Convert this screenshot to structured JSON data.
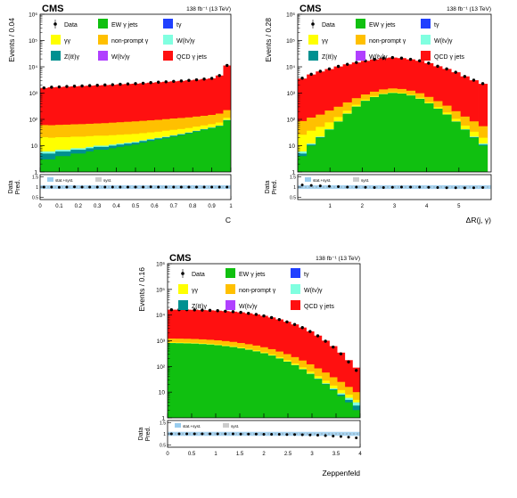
{
  "colors": {
    "ew": "#10c010",
    "nonprompt": "#ffc000",
    "gamma": "#ffff00",
    "tgamma": "#2040ff",
    "wgamma": "#80ffe0",
    "zgamma": "#009090",
    "wwgamma": "#b040ff",
    "qcd": "#ff1010",
    "stat_band": "#99ccee",
    "syst_band": "#cccccc",
    "data": "#000000"
  },
  "legend_labels": {
    "data": "Data",
    "ew": "EW γ jets",
    "tgamma": "tγ",
    "gamma": "γγ",
    "nonprompt": "non-prompt γ",
    "wgamma": "W(ℓν)γ",
    "zgamma": "Z(ℓℓ)γ",
    "wwgamma": "W(ℓν)γ",
    "qcd": "QCD γ jets",
    "stat": "stat.+syst.",
    "syst": "syst."
  },
  "chart_data": [
    {
      "type": "bar",
      "stacked": true,
      "log_y": true,
      "cms_label": "CMS",
      "lumi_label": "138 fb⁻¹ (13 TeV)",
      "ylabel": "Events / 0.04",
      "xlabel": "C",
      "ratio_ylabel": [
        "Data",
        "Pred."
      ],
      "xlim": [
        0,
        1
      ],
      "ylim": [
        1,
        1000000
      ],
      "x_ticks": [
        "0",
        "0.1",
        "0.2",
        "0.3",
        "0.4",
        "0.5",
        "0.6",
        "0.7",
        "0.8",
        "0.9",
        "1"
      ],
      "y_ticks": [
        "1",
        "10",
        "10²",
        "10³",
        "10⁴",
        "10⁵",
        "10⁶"
      ],
      "ratio_ticks": [
        "1.5",
        "1",
        "0.5"
      ],
      "ratio_lim": [
        0.4,
        1.6
      ],
      "bin_edges": [
        0,
        0.04,
        0.08,
        0.12,
        0.16,
        0.2,
        0.24,
        0.28,
        0.32,
        0.36,
        0.4,
        0.44,
        0.48,
        0.52,
        0.56,
        0.6,
        0.64,
        0.68,
        0.72,
        0.76,
        0.8,
        0.84,
        0.88,
        0.92,
        0.96,
        1.0
      ],
      "series": [
        {
          "key": "ew",
          "values": [
            3,
            3,
            4,
            4,
            5,
            5,
            6,
            7,
            7,
            8,
            9,
            10,
            11,
            13,
            15,
            17,
            19,
            22,
            25,
            29,
            34,
            40,
            46,
            55,
            90
          ]
        },
        {
          "key": "zgamma",
          "values": [
            2,
            2,
            2,
            2,
            2,
            2,
            2,
            2,
            2,
            2,
            2,
            2,
            2,
            2,
            2,
            2,
            2,
            2,
            2,
            2,
            2,
            2,
            2,
            2,
            3
          ]
        },
        {
          "key": "wgamma",
          "values": [
            1,
            1,
            1,
            1,
            1,
            1,
            1,
            1,
            1,
            1,
            1,
            1,
            1,
            1,
            1,
            1,
            1,
            1,
            1,
            1,
            1,
            1,
            1,
            1,
            2
          ]
        },
        {
          "key": "gamma",
          "values": [
            15,
            14,
            14,
            14,
            14,
            14,
            14,
            14,
            14,
            14,
            14,
            14,
            14,
            14,
            14,
            14,
            15,
            15,
            15,
            15,
            16,
            16,
            17,
            18,
            20
          ]
        },
        {
          "key": "nonprompt",
          "values": [
            40,
            40,
            41,
            42,
            43,
            44,
            45,
            46,
            48,
            50,
            52,
            54,
            56,
            58,
            60,
            62,
            65,
            68,
            70,
            72,
            75,
            78,
            82,
            90,
            110
          ]
        },
        {
          "key": "qcd",
          "values": [
            1500,
            1600,
            1650,
            1700,
            1750,
            1800,
            1850,
            1900,
            1950,
            2000,
            2100,
            2150,
            2200,
            2300,
            2400,
            2500,
            2600,
            2700,
            2800,
            2950,
            3100,
            3300,
            3500,
            4500,
            11000
          ]
        }
      ],
      "data": [
        1580,
        1680,
        1720,
        1790,
        1830,
        1870,
        1930,
        1980,
        2040,
        2090,
        2170,
        2230,
        2290,
        2380,
        2500,
        2600,
        2700,
        2810,
        2910,
        3050,
        3220,
        3420,
        3640,
        4650,
        11300
      ],
      "ratio": [
        1.0,
        1.0,
        0.99,
        1.0,
        1.01,
        1.0,
        1.0,
        1.0,
        1.0,
        1.0,
        1.0,
        1.0,
        1.0,
        1.0,
        1.01,
        1.0,
        1.0,
        1.0,
        1.0,
        1.0,
        1.0,
        1.0,
        1.0,
        1.0,
        1.0
      ]
    },
    {
      "type": "bar",
      "stacked": true,
      "log_y": true,
      "cms_label": "CMS",
      "lumi_label": "138 fb⁻¹ (13 TeV)",
      "ylabel": "Events / 0.28",
      "xlabel": "ΔR(j, γ)",
      "ratio_ylabel": [
        "Data",
        "Pred."
      ],
      "xlim": [
        0,
        6
      ],
      "ylim": [
        1,
        1000000
      ],
      "x_ticks": [
        "1",
        "2",
        "3",
        "4",
        "5"
      ],
      "x_tick_values": [
        1,
        2,
        3,
        4,
        5
      ],
      "y_ticks": [
        "1",
        "10",
        "10²",
        "10³",
        "10⁴",
        "10⁵",
        "10⁶"
      ],
      "ratio_ticks": [
        "1.5",
        "1",
        "0.5"
      ],
      "ratio_lim": [
        0.4,
        1.6
      ],
      "bin_edges": [
        0,
        0.28,
        0.56,
        0.84,
        1.12,
        1.4,
        1.68,
        1.96,
        2.24,
        2.52,
        2.8,
        3.08,
        3.36,
        3.64,
        3.92,
        4.2,
        4.48,
        4.76,
        5.04,
        5.32,
        5.6,
        5.88
      ],
      "series": [
        {
          "key": "ew",
          "values": [
            4,
            10,
            20,
            40,
            80,
            160,
            300,
            500,
            700,
            900,
            1000,
            950,
            800,
            600,
            400,
            250,
            150,
            80,
            40,
            20,
            10
          ]
        },
        {
          "key": "zgamma",
          "values": [
            1,
            1,
            1,
            1,
            2,
            3,
            4,
            5,
            6,
            7,
            8,
            7,
            6,
            5,
            4,
            3,
            2,
            2,
            1,
            1,
            1
          ]
        },
        {
          "key": "wgamma",
          "values": [
            1,
            1,
            1,
            1,
            1,
            2,
            2,
            3,
            3,
            4,
            4,
            4,
            3,
            3,
            2,
            2,
            1,
            1,
            1,
            1,
            1
          ]
        },
        {
          "key": "gamma",
          "values": [
            20,
            25,
            30,
            35,
            40,
            48,
            55,
            60,
            65,
            70,
            72,
            70,
            65,
            60,
            50,
            40,
            30,
            22,
            16,
            12,
            8
          ]
        },
        {
          "key": "nonprompt",
          "values": [
            60,
            80,
            100,
            140,
            180,
            230,
            280,
            320,
            360,
            400,
            420,
            400,
            360,
            320,
            260,
            200,
            150,
            100,
            70,
            50,
            35
          ]
        },
        {
          "key": "qcd",
          "values": [
            3500,
            5000,
            6500,
            8000,
            10000,
            12000,
            14000,
            16000,
            18000,
            20000,
            21000,
            20000,
            18000,
            16000,
            13000,
            10000,
            8000,
            6000,
            4200,
            3000,
            2200
          ]
        }
      ],
      "data": [
        3700,
        5200,
        6800,
        8300,
        10400,
        12500,
        14700,
        16900,
        19200,
        21400,
        22500,
        21500,
        19300,
        17000,
        13800,
        10500,
        8300,
        6200,
        4300,
        3100,
        2300
      ],
      "ratio": [
        1.1,
        1.08,
        1.06,
        1.04,
        1.02,
        1.0,
        1.0,
        0.99,
        0.98,
        0.98,
        0.99,
        1.0,
        1.0,
        1.0,
        0.99,
        0.98,
        0.97,
        0.97,
        0.96,
        0.97,
        0.98
      ]
    },
    {
      "type": "bar",
      "stacked": true,
      "log_y": true,
      "cms_label": "CMS",
      "lumi_label": "138 fb⁻¹ (13 TeV)",
      "ylabel": "Events / 0.16",
      "xlabel": "Zeppenfeld",
      "ratio_ylabel": [
        "Data",
        "Pred."
      ],
      "xlim": [
        0,
        4
      ],
      "ylim": [
        1,
        1000000
      ],
      "x_ticks": [
        "0",
        "0.5",
        "1",
        "1.5",
        "2",
        "2.5",
        "3",
        "3.5",
        "4"
      ],
      "y_ticks": [
        "1",
        "10",
        "10²",
        "10³",
        "10⁴",
        "10⁵",
        "10⁶"
      ],
      "ratio_ticks": [
        "1.5",
        "1",
        "0.5"
      ],
      "ratio_lim": [
        0.4,
        1.6
      ],
      "bin_edges": [
        0,
        0.16,
        0.32,
        0.48,
        0.64,
        0.8,
        0.96,
        1.12,
        1.28,
        1.44,
        1.6,
        1.76,
        1.92,
        2.08,
        2.24,
        2.4,
        2.56,
        2.72,
        2.88,
        3.04,
        3.2,
        3.36,
        3.52,
        3.68,
        3.84,
        4.0
      ],
      "series": [
        {
          "key": "ew",
          "values": [
            800,
            790,
            780,
            760,
            730,
            700,
            660,
            610,
            560,
            500,
            440,
            380,
            320,
            260,
            200,
            150,
            110,
            75,
            50,
            32,
            20,
            12,
            7,
            4,
            2
          ]
        },
        {
          "key": "zgamma",
          "values": [
            8,
            8,
            8,
            8,
            8,
            7,
            7,
            7,
            6,
            6,
            5,
            5,
            4,
            4,
            3,
            3,
            2,
            2,
            1,
            1,
            1,
            1,
            1,
            1,
            1
          ]
        },
        {
          "key": "wgamma",
          "values": [
            4,
            4,
            4,
            4,
            4,
            4,
            4,
            3,
            3,
            3,
            3,
            3,
            2,
            2,
            2,
            2,
            1,
            1,
            1,
            1,
            1,
            1,
            1,
            1,
            1
          ]
        },
        {
          "key": "gamma",
          "values": [
            60,
            60,
            60,
            60,
            58,
            56,
            54,
            52,
            50,
            46,
            42,
            38,
            34,
            30,
            26,
            22,
            18,
            14,
            11,
            8,
            6,
            4,
            3,
            2,
            1
          ]
        },
        {
          "key": "nonprompt",
          "values": [
            350,
            350,
            345,
            340,
            335,
            325,
            315,
            300,
            285,
            265,
            245,
            225,
            200,
            175,
            150,
            125,
            100,
            78,
            58,
            42,
            30,
            20,
            13,
            8,
            5
          ]
        },
        {
          "key": "qcd",
          "values": [
            15000,
            15000,
            15000,
            14800,
            14500,
            14200,
            13800,
            13300,
            12700,
            12000,
            11000,
            10000,
            8800,
            7600,
            6400,
            5200,
            4100,
            3100,
            2200,
            1500,
            950,
            580,
            320,
            160,
            80
          ]
        }
      ],
      "data": [
        16100,
        16200,
        16150,
        15900,
        15600,
        15300,
        14800,
        14200,
        13600,
        12800,
        11700,
        10600,
        9300,
        8000,
        6700,
        5450,
        4300,
        3250,
        2300,
        1550,
        960,
        570,
        310,
        150,
        70
      ],
      "ratio": [
        1.0,
        1.0,
        1.0,
        1.0,
        1.0,
        1.0,
        1.0,
        1.0,
        1.0,
        0.99,
        0.99,
        0.99,
        0.98,
        0.98,
        0.98,
        0.97,
        0.97,
        0.96,
        0.95,
        0.94,
        0.92,
        0.9,
        0.88,
        0.85,
        0.82
      ]
    }
  ]
}
